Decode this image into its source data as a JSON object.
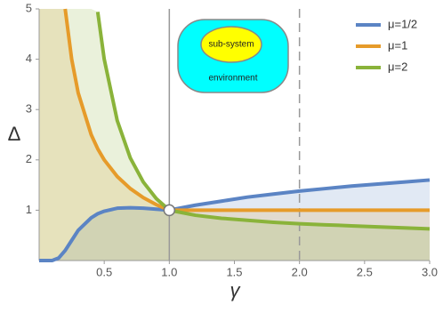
{
  "chart_data": {
    "type": "line",
    "x_label": "γ",
    "y_label": "Δ",
    "x": [
      0,
      0.1,
      0.15,
      0.2,
      0.25,
      0.3,
      0.4,
      0.45,
      0.5,
      0.6,
      0.7,
      0.8,
      0.9,
      1.0,
      1.2,
      1.4,
      1.6,
      1.8,
      2.0,
      2.2,
      2.4,
      2.6,
      2.8,
      3.0
    ],
    "series": [
      {
        "name": "μ=1/2",
        "color": "#5b84c4",
        "values": [
          0,
          0,
          0.05,
          0.2,
          0.4,
          0.6,
          0.85,
          0.93,
          0.98,
          1.04,
          1.05,
          1.04,
          1.02,
          1.0,
          1.1,
          1.18,
          1.26,
          1.32,
          1.38,
          1.43,
          1.48,
          1.52,
          1.56,
          1.6
        ]
      },
      {
        "name": "μ=1",
        "color": "#e69b2a",
        "values": [
          null,
          null,
          null,
          5,
          4,
          3.33,
          2.5,
          2.22,
          2,
          1.67,
          1.43,
          1.25,
          1.11,
          1,
          1,
          1,
          1,
          1,
          1,
          1,
          1,
          1,
          1,
          1
        ]
      },
      {
        "name": "μ=2",
        "color": "#8ab33a",
        "values": [
          null,
          null,
          null,
          null,
          null,
          null,
          null,
          4.94,
          4,
          2.78,
          2.04,
          1.56,
          1.23,
          1,
          0.9,
          0.84,
          0.8,
          0.76,
          0.73,
          0.71,
          0.69,
          0.67,
          0.65,
          0.63
        ]
      }
    ],
    "xlim": [
      0,
      3
    ],
    "ylim": [
      0,
      5
    ],
    "xticks": [
      0.5,
      {
        "value": 1,
        "label": "1.0"
      },
      1.5,
      {
        "value": 2,
        "label": "2.0"
      },
      2.5,
      {
        "value": 3,
        "label": "3.0"
      }
    ],
    "yticks": [
      1,
      2,
      3,
      4,
      5
    ],
    "reference_lines": [
      {
        "x": 1,
        "style": "solid"
      },
      {
        "x": 2,
        "style": "dashed"
      }
    ],
    "marker": {
      "x": 1,
      "y": 1
    },
    "legend": "top-right",
    "annotations": [
      "sub-system",
      "environment"
    ]
  }
}
